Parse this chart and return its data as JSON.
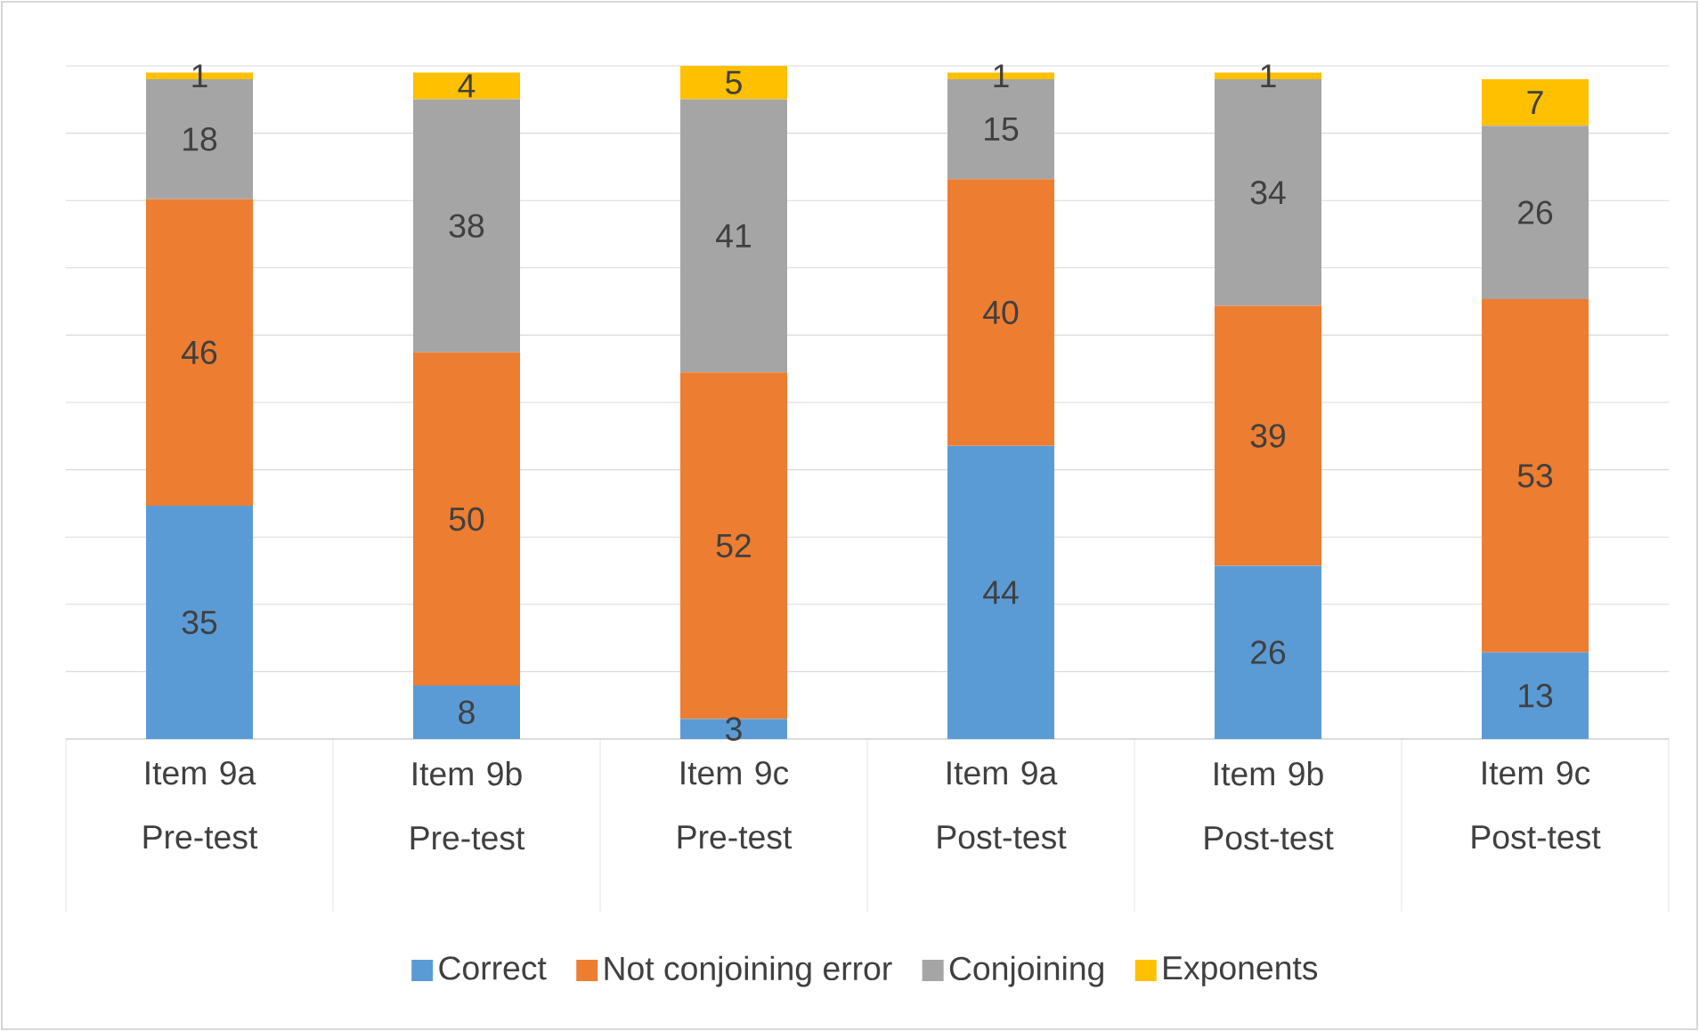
{
  "chart_data": {
    "type": "bar",
    "stacked": true,
    "data_labels": true,
    "categories": [
      "Item 9a Pre-test",
      "Item 9b Pre-test",
      "Item 9c Pre-test",
      "Item 9a Post-test",
      "Item 9b Post-test",
      "Item 9c Post-test"
    ],
    "series": [
      {
        "name": "Correct",
        "color": "#5b9bd5",
        "values": [
          35,
          8,
          3,
          44,
          26,
          13
        ]
      },
      {
        "name": "Not conjoining error",
        "color": "#ed7d31",
        "values": [
          46,
          50,
          52,
          40,
          39,
          53
        ]
      },
      {
        "name": "Conjoining",
        "color": "#a5a5a5",
        "values": [
          18,
          38,
          41,
          15,
          34,
          26
        ]
      },
      {
        "name": "Exponents",
        "color": "#ffc000",
        "values": [
          1,
          4,
          5,
          1,
          1,
          7
        ]
      }
    ],
    "ylim": [
      0,
      101
    ],
    "grid": "y",
    "legend": "bottom",
    "tick_labels": "x"
  }
}
